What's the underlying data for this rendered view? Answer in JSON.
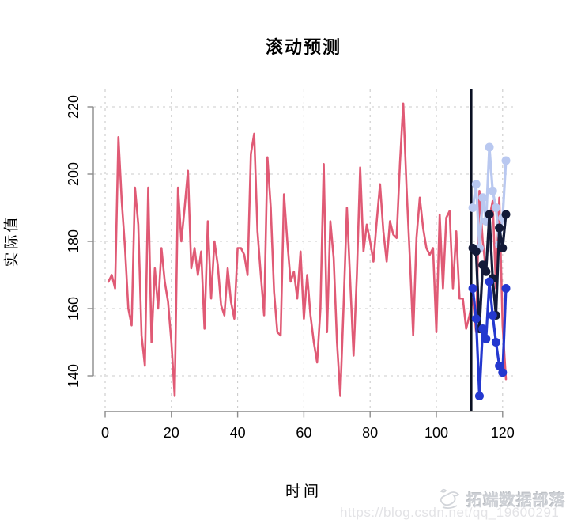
{
  "watermark": {
    "brand": "拓端数据部落",
    "url": "https://blog.csdn.net/qq_19600291"
  },
  "chart_data": {
    "type": "line",
    "title": "滚动预测",
    "xlabel": "时间",
    "ylabel": "实际值",
    "xlim": [
      0,
      124
    ],
    "ylim": [
      129,
      226
    ],
    "x_ticks": [
      0,
      20,
      40,
      60,
      80,
      100,
      120
    ],
    "y_ticks": [
      140,
      160,
      180,
      200,
      220
    ],
    "grid": "dashed lightgray, full plot region",
    "legend": "none",
    "vline": {
      "x": 110.5,
      "color": "#0a1022",
      "meaning": "train/forecast split"
    },
    "colors": {
      "actual": "#e05a75",
      "forecast_light": "#b9c8f0",
      "forecast_navy": "#131a38",
      "forecast_blue": "#2438cf",
      "grid": "#cbcbcb",
      "axis": "#8c8c8c"
    },
    "series": [
      {
        "name": "actual",
        "color": "#e05a75",
        "marker": false,
        "line_width": 2.6,
        "x_start": 1,
        "values": [
          168,
          170,
          166,
          211,
          192,
          178,
          160,
          155,
          196,
          185,
          152,
          143,
          196,
          150,
          172,
          160,
          178,
          168,
          162,
          150,
          134,
          196,
          180,
          190,
          201,
          172,
          178,
          170,
          177,
          154,
          186,
          163,
          180,
          173,
          161,
          158,
          172,
          162,
          157,
          178,
          178,
          176,
          170,
          206,
          212,
          183,
          170,
          158,
          205,
          190,
          165,
          153,
          152,
          194,
          180,
          168,
          171,
          163,
          177,
          157,
          170,
          158,
          150,
          144,
          160,
          203,
          153,
          186,
          175,
          150,
          134,
          161,
          190,
          168,
          146,
          170,
          202,
          177,
          185,
          180,
          174,
          186,
          197,
          183,
          174,
          186,
          182,
          181,
          203,
          221,
          196,
          175,
          152,
          181,
          193,
          184,
          178,
          176,
          178,
          153,
          188,
          166,
          187,
          189,
          166,
          183,
          163,
          163,
          154,
          158,
          163,
          153,
          195,
          180,
          171,
          187,
          192,
          166,
          193,
          155,
          139
        ]
      },
      {
        "name": "forecast_light",
        "color": "#b9c8f0",
        "marker": true,
        "line_width": 3.2,
        "x_start": 111,
        "values": [
          190,
          197,
          178,
          193,
          186,
          208,
          195,
          190,
          179,
          187,
          204
        ]
      },
      {
        "name": "forecast_navy",
        "color": "#131a38",
        "marker": true,
        "line_width": 3.2,
        "x_start": 111,
        "values": [
          178,
          177,
          154,
          173,
          171,
          188,
          169,
          158,
          184,
          178,
          188
        ]
      },
      {
        "name": "forecast_blue",
        "color": "#2438cf",
        "marker": true,
        "line_width": 3.2,
        "x_start": 111,
        "values": [
          166,
          157,
          134,
          154,
          151,
          168,
          158,
          150,
          143,
          141,
          166
        ]
      }
    ]
  }
}
